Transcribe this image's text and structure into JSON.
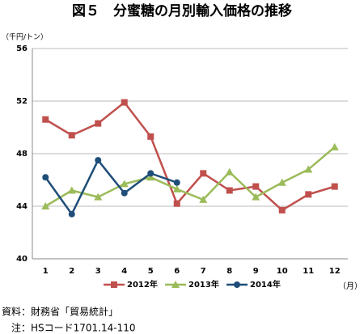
{
  "chart_data": {
    "type": "line",
    "title": "図５　分蜜糖の月別輸入価格の推移",
    "y_label": "（千円/トン）",
    "x_label": "（月）",
    "categories": [
      "1",
      "2",
      "3",
      "4",
      "5",
      "6",
      "7",
      "8",
      "9",
      "10",
      "11",
      "12"
    ],
    "series": [
      {
        "name": "2012年",
        "color": "#c0504d",
        "marker": "square",
        "values": [
          50.6,
          49.4,
          50.3,
          51.9,
          49.3,
          44.2,
          46.5,
          45.2,
          45.5,
          43.7,
          44.9,
          45.5
        ]
      },
      {
        "name": "2013年",
        "color": "#9bbb59",
        "marker": "triangle",
        "values": [
          44.0,
          45.2,
          44.7,
          45.7,
          46.2,
          45.3,
          44.5,
          46.6,
          44.7,
          45.8,
          46.8,
          48.5
        ]
      },
      {
        "name": "2014年",
        "color": "#1f4e79",
        "marker": "circle",
        "values": [
          46.2,
          43.4,
          47.5,
          45.0,
          46.5,
          45.8,
          null,
          null,
          null,
          null,
          null,
          null
        ]
      }
    ],
    "ylim": [
      40,
      56
    ],
    "yticks": [
      40,
      44,
      48,
      52,
      56
    ],
    "grid": true,
    "legend": "bottom",
    "notes": [
      "資料：財務省「貿易統計」",
      "　注：HSコード1701.14-110"
    ]
  }
}
